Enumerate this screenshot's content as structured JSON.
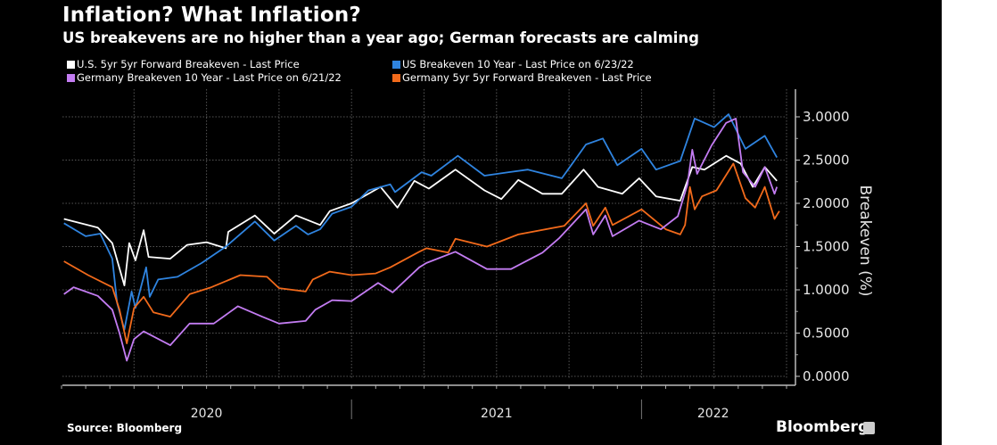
{
  "header": {
    "title": "Inflation? What Inflation?",
    "subtitle": "US breakevens are no higher than a year ago; German forecasts are calming"
  },
  "footer": {
    "source": "Source: Bloomberg",
    "brand": "Bloomberg"
  },
  "chart_data": {
    "type": "line",
    "title": "Inflation? What Inflation?",
    "ylabel": "Breakeven (%)",
    "xlabel": "",
    "x_units": "months since Jan 2020",
    "xlim": [
      0,
      30
    ],
    "ylim": [
      0,
      3.2
    ],
    "yticks": [
      "0.0000",
      "0.5000",
      "1.0000",
      "1.5000",
      "2.0000",
      "2.5000",
      "3.0000"
    ],
    "ytick_values": [
      0,
      0.5,
      1,
      1.5,
      2,
      2.5,
      3
    ],
    "year_labels": [
      {
        "label": "2020",
        "start": 0,
        "end": 12
      },
      {
        "label": "2021",
        "start": 12,
        "end": 24
      },
      {
        "label": "2022",
        "start": 24,
        "end": 30
      }
    ],
    "grid": true,
    "legend_position": "top",
    "series": [
      {
        "name": "U.S. 5yr 5yr Forward Breakeven - Last Price",
        "color": "#ffffff",
        "points": [
          [
            0.1,
            1.82
          ],
          [
            1.5,
            1.72
          ],
          [
            2.1,
            1.54
          ],
          [
            2.6,
            1.05
          ],
          [
            2.8,
            1.54
          ],
          [
            3.06,
            1.34
          ],
          [
            3.4,
            1.69
          ],
          [
            3.6,
            1.38
          ],
          [
            4.5,
            1.36
          ],
          [
            5.2,
            1.52
          ],
          [
            6,
            1.55
          ],
          [
            6.8,
            1.48
          ],
          [
            6.9,
            1.67
          ],
          [
            8,
            1.86
          ],
          [
            8.8,
            1.65
          ],
          [
            9.7,
            1.86
          ],
          [
            10.7,
            1.75
          ],
          [
            11.1,
            1.91
          ],
          [
            12,
            2.0
          ],
          [
            13.2,
            2.19
          ],
          [
            13.9,
            1.95
          ],
          [
            14.6,
            2.26
          ],
          [
            15.2,
            2.17
          ],
          [
            16.3,
            2.39
          ],
          [
            17.5,
            2.15
          ],
          [
            18.2,
            2.05
          ],
          [
            18.9,
            2.27
          ],
          [
            19.9,
            2.11
          ],
          [
            20.7,
            2.11
          ],
          [
            21.6,
            2.39
          ],
          [
            22.2,
            2.19
          ],
          [
            23.2,
            2.11
          ],
          [
            23.9,
            2.29
          ],
          [
            24.6,
            2.08
          ],
          [
            25.6,
            2.03
          ],
          [
            26.1,
            2.42
          ],
          [
            26.6,
            2.39
          ],
          [
            27.5,
            2.55
          ],
          [
            28.1,
            2.46
          ],
          [
            28.6,
            2.19
          ],
          [
            29.1,
            2.42
          ],
          [
            29.6,
            2.26
          ]
        ]
      },
      {
        "name": "US Breakeven 10 Year - Last Price on 6/23/22",
        "color": "#2f84e0",
        "points": [
          [
            0.1,
            1.77
          ],
          [
            1,
            1.62
          ],
          [
            1.6,
            1.65
          ],
          [
            2.1,
            1.36
          ],
          [
            2.3,
            0.85
          ],
          [
            2.6,
            0.54
          ],
          [
            2.9,
            0.98
          ],
          [
            3.06,
            0.79
          ],
          [
            3.5,
            1.26
          ],
          [
            3.65,
            0.92
          ],
          [
            4,
            1.12
          ],
          [
            4.8,
            1.15
          ],
          [
            5.8,
            1.31
          ],
          [
            6.8,
            1.5
          ],
          [
            8,
            1.79
          ],
          [
            8.8,
            1.57
          ],
          [
            9.7,
            1.74
          ],
          [
            10.2,
            1.64
          ],
          [
            10.7,
            1.7
          ],
          [
            11.2,
            1.88
          ],
          [
            12,
            1.96
          ],
          [
            12.7,
            2.15
          ],
          [
            13.6,
            2.22
          ],
          [
            13.8,
            2.13
          ],
          [
            14.9,
            2.36
          ],
          [
            15.3,
            2.32
          ],
          [
            16.4,
            2.55
          ],
          [
            17.5,
            2.32
          ],
          [
            18.5,
            2.36
          ],
          [
            19.3,
            2.39
          ],
          [
            20.7,
            2.29
          ],
          [
            21.7,
            2.68
          ],
          [
            22.4,
            2.75
          ],
          [
            23,
            2.44
          ],
          [
            24,
            2.63
          ],
          [
            24.6,
            2.39
          ],
          [
            25.6,
            2.49
          ],
          [
            26.2,
            2.98
          ],
          [
            27,
            2.88
          ],
          [
            27.6,
            3.03
          ],
          [
            28.3,
            2.63
          ],
          [
            29.1,
            2.78
          ],
          [
            29.6,
            2.53
          ]
        ]
      },
      {
        "name": "Germany Breakeven 10 Year - Last Price on 6/21/22",
        "color": "#c37cf2",
        "points": [
          [
            0.1,
            0.95
          ],
          [
            0.5,
            1.03
          ],
          [
            1.5,
            0.93
          ],
          [
            2.1,
            0.77
          ],
          [
            2.4,
            0.5
          ],
          [
            2.7,
            0.18
          ],
          [
            3,
            0.43
          ],
          [
            3.4,
            0.52
          ],
          [
            4.5,
            0.36
          ],
          [
            5.3,
            0.61
          ],
          [
            6.3,
            0.61
          ],
          [
            7.3,
            0.81
          ],
          [
            8.3,
            0.69
          ],
          [
            9,
            0.61
          ],
          [
            10.1,
            0.64
          ],
          [
            10.5,
            0.77
          ],
          [
            11.2,
            0.88
          ],
          [
            12,
            0.87
          ],
          [
            13.1,
            1.08
          ],
          [
            13.7,
            0.97
          ],
          [
            14.8,
            1.26
          ],
          [
            15.1,
            1.31
          ],
          [
            16.3,
            1.44
          ],
          [
            17.6,
            1.24
          ],
          [
            18.6,
            1.24
          ],
          [
            19.9,
            1.43
          ],
          [
            20.6,
            1.6
          ],
          [
            21.7,
            1.93
          ],
          [
            22,
            1.64
          ],
          [
            22.5,
            1.86
          ],
          [
            22.8,
            1.62
          ],
          [
            23.9,
            1.8
          ],
          [
            24.8,
            1.7
          ],
          [
            25.5,
            1.85
          ],
          [
            25.9,
            2.22
          ],
          [
            26.1,
            2.62
          ],
          [
            26.3,
            2.34
          ],
          [
            26.9,
            2.67
          ],
          [
            27.5,
            2.93
          ],
          [
            27.9,
            2.98
          ],
          [
            28.2,
            2.36
          ],
          [
            28.7,
            2.19
          ],
          [
            29.1,
            2.42
          ],
          [
            29.5,
            2.11
          ],
          [
            29.6,
            2.19
          ]
        ]
      },
      {
        "name": "Germany 5yr 5yr Forward Breakeven - Last Price",
        "color": "#f26a1b",
        "points": [
          [
            0.1,
            1.33
          ],
          [
            1.1,
            1.17
          ],
          [
            2.1,
            1.03
          ],
          [
            2.4,
            0.77
          ],
          [
            2.7,
            0.38
          ],
          [
            3,
            0.79
          ],
          [
            3.4,
            0.92
          ],
          [
            3.8,
            0.74
          ],
          [
            4.5,
            0.69
          ],
          [
            5.3,
            0.95
          ],
          [
            6.2,
            1.03
          ],
          [
            7.4,
            1.17
          ],
          [
            8.5,
            1.15
          ],
          [
            9,
            1.02
          ],
          [
            10.1,
            0.98
          ],
          [
            10.4,
            1.12
          ],
          [
            11.1,
            1.21
          ],
          [
            12,
            1.17
          ],
          [
            13,
            1.19
          ],
          [
            13.6,
            1.26
          ],
          [
            14.8,
            1.44
          ],
          [
            15.1,
            1.48
          ],
          [
            16,
            1.43
          ],
          [
            16.3,
            1.59
          ],
          [
            17.6,
            1.5
          ],
          [
            18.9,
            1.64
          ],
          [
            20.8,
            1.74
          ],
          [
            21.7,
            2.0
          ],
          [
            22,
            1.74
          ],
          [
            22.5,
            1.95
          ],
          [
            22.8,
            1.75
          ],
          [
            24,
            1.93
          ],
          [
            25,
            1.7
          ],
          [
            25.6,
            1.64
          ],
          [
            25.8,
            1.75
          ],
          [
            26,
            2.19
          ],
          [
            26.2,
            1.93
          ],
          [
            26.5,
            2.08
          ],
          [
            27.1,
            2.15
          ],
          [
            27.8,
            2.46
          ],
          [
            28.3,
            2.06
          ],
          [
            28.7,
            1.95
          ],
          [
            29.1,
            2.19
          ],
          [
            29.5,
            1.82
          ],
          [
            29.7,
            1.91
          ]
        ]
      }
    ]
  }
}
